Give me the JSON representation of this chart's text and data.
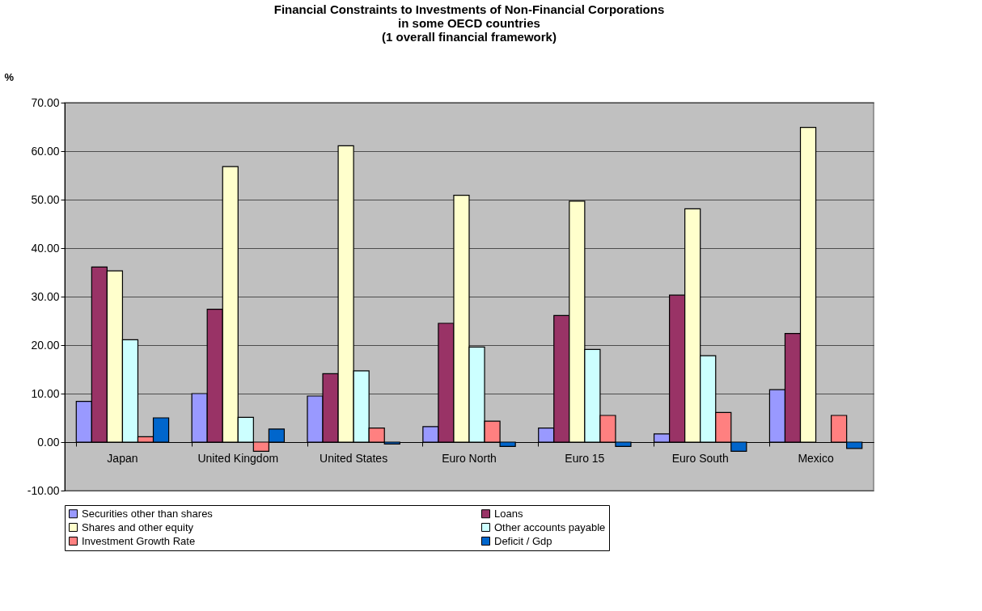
{
  "chart_data": {
    "type": "bar",
    "title": "Financial Constraints to Investments of Non-Financial Corporations\nin some OECD countries\n(1 overall financial framework)",
    "ylabel": "%",
    "categories": [
      "Japan",
      "United Kingdom",
      "United States",
      "Euro North",
      "Euro 15",
      "Euro South",
      "Mexico"
    ],
    "series": [
      {
        "name": "Securities other than shares",
        "color": "#9999ff",
        "values": [
          8.4,
          10.0,
          9.5,
          3.2,
          2.9,
          1.7,
          10.8
        ]
      },
      {
        "name": "Loans",
        "color": "#993366",
        "values": [
          36.1,
          27.4,
          14.1,
          24.5,
          26.1,
          30.3,
          22.4
        ]
      },
      {
        "name": "Shares and other equity",
        "color": "#ffffcc",
        "values": [
          35.3,
          56.8,
          61.1,
          50.9,
          49.7,
          48.1,
          64.9
        ]
      },
      {
        "name": "Other accounts payable",
        "color": "#ccffff",
        "values": [
          21.1,
          5.1,
          14.7,
          19.6,
          19.1,
          17.8,
          null
        ]
      },
      {
        "name": "Investment Growth Rate",
        "color": "#ff8080",
        "values": [
          1.1,
          -1.9,
          2.9,
          4.3,
          5.5,
          6.1,
          5.5
        ]
      },
      {
        "name": "Deficit / Gdp",
        "color": "#0066cc",
        "values": [
          5.0,
          2.7,
          -0.4,
          -0.9,
          -0.9,
          -1.9,
          -1.3
        ]
      }
    ],
    "ylim": [
      -10,
      70
    ],
    "yticks": [
      {
        "value": -10,
        "label": "-10.00"
      },
      {
        "value": 0,
        "label": "0.00"
      },
      {
        "value": 10,
        "label": "10.00"
      },
      {
        "value": 20,
        "label": "20.00"
      },
      {
        "value": 30,
        "label": "30.00"
      },
      {
        "value": 40,
        "label": "40.00"
      },
      {
        "value": 50,
        "label": "50.00"
      },
      {
        "value": 60,
        "label": "60.00"
      },
      {
        "value": 70,
        "label": "70.00"
      }
    ],
    "grid": "y",
    "legend": "bottom"
  }
}
